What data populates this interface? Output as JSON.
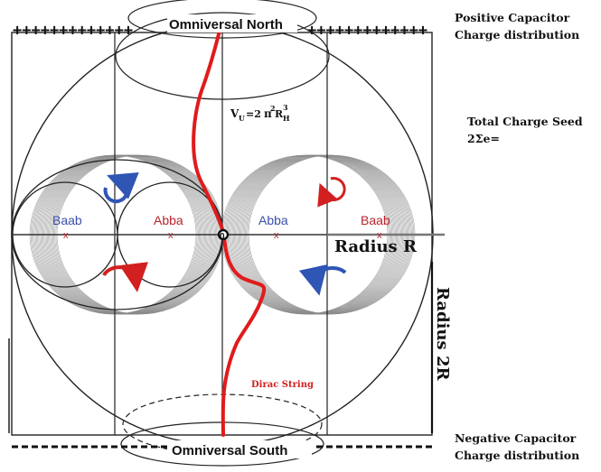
{
  "labels": {
    "north": "Omniversal  North",
    "south": "Omniversal South",
    "volume_v": "V",
    "volume_sub_u": "U",
    "volume_eq": "=2",
    "volume_pi": "π",
    "volume_pi_exp": "2",
    "volume_r": "R",
    "volume_r_sub": "H",
    "volume_r_exp": "3",
    "left_outer": "Baab",
    "left_inner": "Abba",
    "right_inner": "Abba",
    "right_outer": "Baab",
    "center": "0",
    "radius_r": "Radius R",
    "radius_2r": "Radius 2R",
    "dirac": "Dirac String"
  },
  "side_notes": {
    "positive_line1": "Positive Capacitor",
    "positive_line2": "Charge distribution",
    "seed_line1": "Total Charge Seed",
    "seed_line2": "2Σe=",
    "negative_line1": "Negative Capacitor",
    "negative_line2": "Charge distribution"
  },
  "colors": {
    "blue_label": "#3b4fa8",
    "red_label": "#b8232a",
    "dirac_red": "#e01b1b",
    "arrow_blue": "#2f55b5",
    "arrow_red": "#d22020",
    "dark": "#111111",
    "torus_grey": "#8a8a8a"
  }
}
